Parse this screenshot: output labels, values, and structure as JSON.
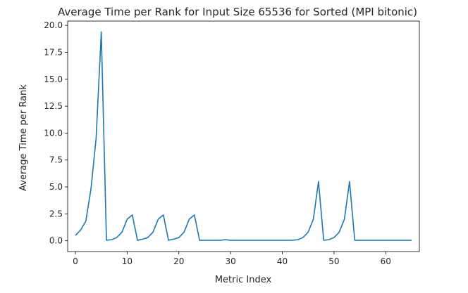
{
  "chart_data": {
    "type": "line",
    "title": "Average Time per Rank for Input Size 65536 for Sorted (MPI bitonic)",
    "xlabel": "Metric Index",
    "ylabel": "Average Time per Rank",
    "xlim": [
      -1.5,
      66.5
    ],
    "ylim": [
      -1.0,
      20.4
    ],
    "xticks": [
      0,
      10,
      20,
      30,
      40,
      50,
      60
    ],
    "yticks": [
      0.0,
      2.5,
      5.0,
      7.5,
      10.0,
      12.5,
      15.0,
      17.5,
      20.0
    ],
    "xtick_labels": [
      "0",
      "10",
      "20",
      "30",
      "40",
      "50",
      "60"
    ],
    "ytick_labels": [
      "0.0",
      "2.5",
      "5.0",
      "7.5",
      "10.0",
      "12.5",
      "15.0",
      "17.5",
      "20.0"
    ],
    "grid": false,
    "legend": false,
    "color": "#1f77b4",
    "series": [
      {
        "x": [
          0,
          1,
          2,
          3,
          4,
          5,
          6,
          7,
          8,
          9,
          10,
          11,
          12,
          13,
          14,
          15,
          16,
          17,
          18,
          19,
          20,
          21,
          22,
          23,
          24,
          25,
          26,
          27,
          28,
          29,
          30,
          31,
          32,
          33,
          34,
          35,
          36,
          37,
          38,
          39,
          40,
          41,
          42,
          43,
          44,
          45,
          46,
          47,
          48,
          49,
          50,
          51,
          52,
          53,
          54,
          55,
          56,
          57,
          58,
          59,
          60,
          61,
          62,
          63,
          64,
          65
        ],
        "values": [
          0.5,
          1.0,
          1.8,
          4.8,
          9.5,
          19.4,
          0.05,
          0.1,
          0.3,
          0.8,
          2.0,
          2.4,
          0.05,
          0.15,
          0.3,
          0.8,
          2.0,
          2.4,
          0.05,
          0.15,
          0.3,
          0.8,
          2.0,
          2.4,
          0.05,
          0.05,
          0.05,
          0.05,
          0.05,
          0.1,
          0.05,
          0.05,
          0.05,
          0.05,
          0.05,
          0.05,
          0.05,
          0.05,
          0.05,
          0.05,
          0.05,
          0.05,
          0.05,
          0.1,
          0.3,
          0.8,
          2.0,
          5.5,
          0.05,
          0.1,
          0.3,
          0.8,
          2.0,
          5.5,
          0.05,
          0.05,
          0.05,
          0.05,
          0.05,
          0.05,
          0.05,
          0.05,
          0.05,
          0.05,
          0.05,
          0.05
        ]
      }
    ]
  }
}
